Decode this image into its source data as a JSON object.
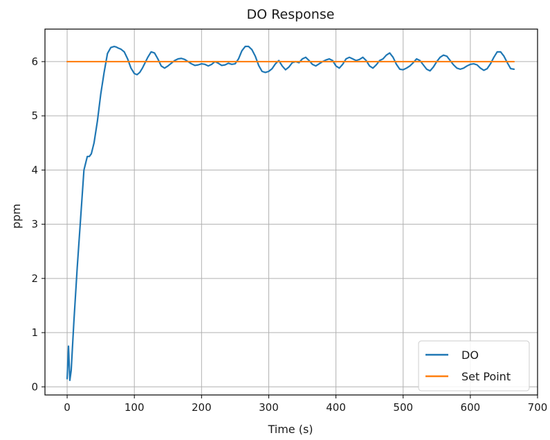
{
  "chart_data": {
    "type": "line",
    "title": "DO Response",
    "xlabel": "Time (s)",
    "ylabel": "ppm",
    "xlim": [
      -33,
      700
    ],
    "ylim": [
      -0.15,
      6.6
    ],
    "xticks": [
      0,
      100,
      200,
      300,
      400,
      500,
      600,
      700
    ],
    "yticks": [
      0,
      1,
      2,
      3,
      4,
      5,
      6
    ],
    "grid": true,
    "legend_position": "lower-right",
    "series": [
      {
        "name": "DO",
        "color": "#1f77b4",
        "x": [
          0,
          2,
          4,
          6,
          10,
          15,
          20,
          25,
          30,
          33,
          36,
          40,
          45,
          50,
          55,
          60,
          65,
          70,
          73,
          76,
          80,
          85,
          90,
          95,
          100,
          104,
          108,
          112,
          116,
          120,
          125,
          130,
          135,
          140,
          145,
          150,
          155,
          160,
          165,
          170,
          175,
          180,
          185,
          190,
          195,
          200,
          205,
          210,
          215,
          220,
          225,
          230,
          235,
          240,
          245,
          250,
          255,
          260,
          265,
          270,
          275,
          280,
          285,
          290,
          295,
          300,
          305,
          310,
          315,
          320,
          325,
          330,
          335,
          340,
          345,
          350,
          355,
          360,
          365,
          370,
          375,
          380,
          385,
          390,
          395,
          400,
          405,
          410,
          415,
          420,
          425,
          430,
          435,
          440,
          445,
          450,
          455,
          460,
          465,
          470,
          475,
          480,
          485,
          490,
          495,
          500,
          505,
          510,
          515,
          520,
          525,
          530,
          535,
          540,
          545,
          550,
          555,
          560,
          565,
          570,
          575,
          580,
          585,
          590,
          595,
          600,
          605,
          610,
          615,
          620,
          625,
          630,
          635,
          640,
          645,
          650,
          655,
          660,
          665
        ],
        "y": [
          0.15,
          0.75,
          0.12,
          0.3,
          1.2,
          2.2,
          3.1,
          4.0,
          4.25,
          4.25,
          4.3,
          4.5,
          4.9,
          5.4,
          5.8,
          6.15,
          6.26,
          6.28,
          6.27,
          6.25,
          6.23,
          6.18,
          6.05,
          5.88,
          5.78,
          5.76,
          5.8,
          5.88,
          5.98,
          6.08,
          6.18,
          6.16,
          6.05,
          5.92,
          5.88,
          5.92,
          5.97,
          6.02,
          6.05,
          6.06,
          6.04,
          6.0,
          5.96,
          5.93,
          5.94,
          5.96,
          5.95,
          5.92,
          5.95,
          6.0,
          5.97,
          5.93,
          5.94,
          5.97,
          5.95,
          5.96,
          6.05,
          6.2,
          6.28,
          6.28,
          6.22,
          6.1,
          5.93,
          5.82,
          5.8,
          5.82,
          5.87,
          5.96,
          6.02,
          5.92,
          5.85,
          5.9,
          5.98,
          6.0,
          5.98,
          6.05,
          6.08,
          6.02,
          5.95,
          5.92,
          5.96,
          6.0,
          6.03,
          6.05,
          6.02,
          5.92,
          5.88,
          5.95,
          6.05,
          6.08,
          6.05,
          6.02,
          6.04,
          6.08,
          6.02,
          5.92,
          5.88,
          5.94,
          6.02,
          6.05,
          6.12,
          6.16,
          6.08,
          5.95,
          5.86,
          5.85,
          5.88,
          5.92,
          5.98,
          6.05,
          6.02,
          5.94,
          5.86,
          5.83,
          5.9,
          6.0,
          6.08,
          6.12,
          6.1,
          6.02,
          5.94,
          5.88,
          5.86,
          5.88,
          5.92,
          5.95,
          5.96,
          5.94,
          5.88,
          5.84,
          5.87,
          5.96,
          6.08,
          6.18,
          6.18,
          6.1,
          5.98,
          5.87,
          5.86
        ]
      },
      {
        "name": "Set Point",
        "color": "#ff7f0e",
        "x": [
          0,
          665
        ],
        "y": [
          6,
          6
        ]
      }
    ]
  }
}
